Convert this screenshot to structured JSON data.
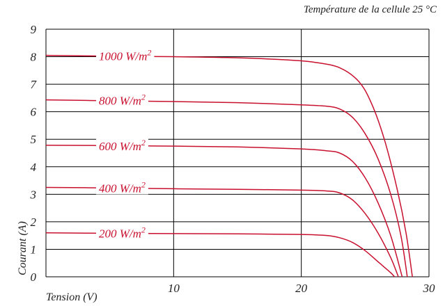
{
  "chart_data": {
    "type": "line",
    "annotation": "Température de la cellule 25 °C",
    "xlabel": "Tension (V)",
    "ylabel": "Courant (A)",
    "xlim": [
      0,
      30
    ],
    "ylim": [
      0,
      9
    ],
    "x_ticks": [
      0,
      10,
      20,
      30
    ],
    "y_ticks": [
      0,
      1,
      2,
      3,
      4,
      5,
      6,
      7,
      8,
      9
    ],
    "grid": true,
    "line_color": "#c8102e",
    "series": [
      {
        "name": "1000 W/m²",
        "label_base": "1000 W/m",
        "label_sup": "2",
        "points": [
          [
            0,
            8.05
          ],
          [
            5,
            8.02
          ],
          [
            10,
            8.0
          ],
          [
            15,
            7.96
          ],
          [
            19,
            7.88
          ],
          [
            21,
            7.8
          ],
          [
            23,
            7.6
          ],
          [
            24.5,
            7.1
          ],
          [
            25.5,
            6.3
          ],
          [
            26.5,
            5.0
          ],
          [
            27.5,
            3.2
          ],
          [
            28.2,
            1.6
          ],
          [
            28.7,
            0
          ]
        ]
      },
      {
        "name": "800 W/m²",
        "label_base": "800 W/m",
        "label_sup": "2",
        "points": [
          [
            0,
            6.43
          ],
          [
            5,
            6.4
          ],
          [
            10,
            6.37
          ],
          [
            15,
            6.33
          ],
          [
            20,
            6.25
          ],
          [
            22,
            6.2
          ],
          [
            23,
            6.1
          ],
          [
            24,
            5.8
          ],
          [
            25,
            5.2
          ],
          [
            26,
            4.3
          ],
          [
            27,
            3.0
          ],
          [
            27.8,
            1.5
          ],
          [
            28.3,
            0
          ]
        ]
      },
      {
        "name": "600 W/m²",
        "label_base": "600 W/m",
        "label_sup": "2",
        "points": [
          [
            0,
            4.78
          ],
          [
            5,
            4.77
          ],
          [
            10,
            4.75
          ],
          [
            15,
            4.72
          ],
          [
            20,
            4.65
          ],
          [
            22,
            4.58
          ],
          [
            23,
            4.5
          ],
          [
            24,
            4.2
          ],
          [
            25,
            3.6
          ],
          [
            26,
            2.7
          ],
          [
            27,
            1.5
          ],
          [
            27.9,
            0
          ]
        ]
      },
      {
        "name": "400 W/m²",
        "label_base": "400 W/m",
        "label_sup": "2",
        "points": [
          [
            0,
            3.25
          ],
          [
            5,
            3.23
          ],
          [
            10,
            3.2
          ],
          [
            15,
            3.18
          ],
          [
            20,
            3.15
          ],
          [
            22,
            3.12
          ],
          [
            23,
            3.05
          ],
          [
            24,
            2.8
          ],
          [
            25,
            2.3
          ],
          [
            26,
            1.6
          ],
          [
            27,
            0.7
          ],
          [
            27.6,
            0
          ]
        ]
      },
      {
        "name": "200 W/m²",
        "label_base": "200 W/m",
        "label_sup": "2",
        "points": [
          [
            0,
            1.6
          ],
          [
            5,
            1.58
          ],
          [
            10,
            1.57
          ],
          [
            15,
            1.56
          ],
          [
            20,
            1.54
          ],
          [
            22,
            1.5
          ],
          [
            23,
            1.42
          ],
          [
            24,
            1.25
          ],
          [
            25,
            0.95
          ],
          [
            26,
            0.55
          ],
          [
            27,
            0.15
          ],
          [
            27.3,
            0
          ]
        ]
      }
    ]
  }
}
